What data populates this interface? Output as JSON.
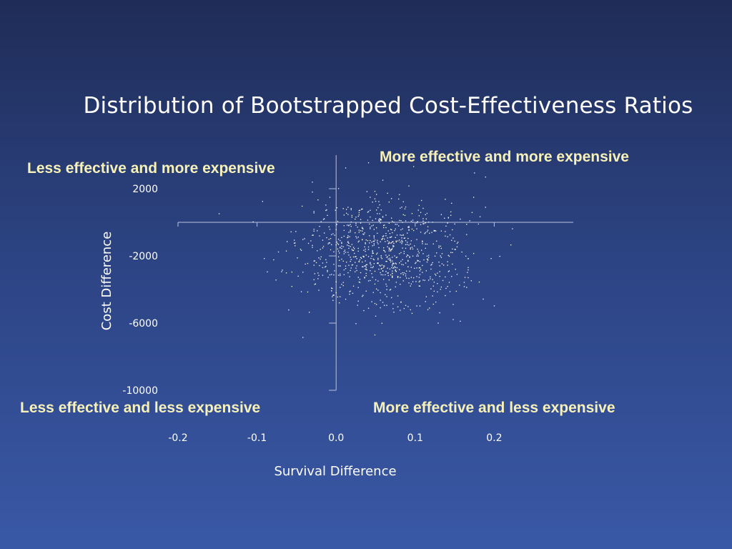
{
  "colors": {
    "background_top": "#1f2c57",
    "background_bottom": "#3958a6",
    "quadrant_label": "#f6f1b8",
    "points": "#ffffff",
    "axes": "#b9c2dc"
  },
  "chart_data": {
    "type": "scatter",
    "title": "Distribution of Bootstrapped Cost-Effectiveness Ratios",
    "xlabel": "Survival Difference",
    "ylabel": "Cost Difference",
    "xlim": [
      -0.2,
      0.3
    ],
    "ylim": [
      -10000,
      4000
    ],
    "x_ticks": [
      "-0.2",
      "-0.1",
      "0.0",
      "0.1",
      "0.2"
    ],
    "x_tick_values": [
      -0.2,
      -0.1,
      0.0,
      0.1,
      0.2
    ],
    "y_ticks": [
      "2000",
      "-2000",
      "-6000",
      "-10000"
    ],
    "y_tick_values": [
      2000,
      -2000,
      -6000,
      -10000
    ],
    "grid": false,
    "legend": "none",
    "quadrant_labels": {
      "top_left": "Less effective and more expensive",
      "top_right": "More effective and more expensive",
      "bottom_left": "Less effective and less expensive",
      "bottom_right": "More effective and less expensive"
    },
    "points": []
  }
}
